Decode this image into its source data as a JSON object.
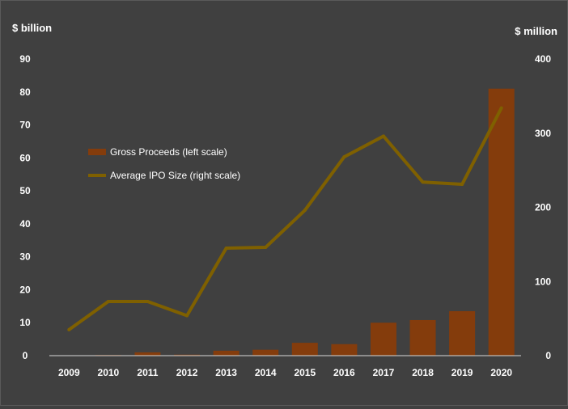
{
  "chart_data": {
    "type": "bar+line",
    "categories": [
      "2009",
      "2010",
      "2011",
      "2012",
      "2013",
      "2014",
      "2015",
      "2016",
      "2017",
      "2018",
      "2019",
      "2020"
    ],
    "left_axis": {
      "unit_label": "$ billion",
      "ylim": [
        0,
        90
      ],
      "ticks": [
        "0",
        "10",
        "20",
        "30",
        "40",
        "50",
        "60",
        "70",
        "80",
        "90"
      ]
    },
    "right_axis": {
      "unit_label": "$ million",
      "ylim": [
        0,
        400
      ],
      "ticks": [
        "0",
        "100",
        "200",
        "300",
        "400"
      ]
    },
    "series": [
      {
        "name": "Gross Proceeds (left scale)",
        "kind": "bar",
        "axis": "left",
        "color": "#843C0C",
        "values": [
          0.1,
          0.2,
          1.0,
          0.3,
          1.5,
          1.8,
          3.9,
          3.5,
          10.0,
          10.8,
          13.5,
          81.0
        ]
      },
      {
        "name": "Average IPO Size (right scale)",
        "kind": "line",
        "axis": "right",
        "color": "#7F6000",
        "values": [
          35,
          73,
          73,
          54,
          145,
          146,
          196,
          268,
          296,
          234,
          231,
          334
        ]
      }
    ],
    "legend_position": "center-left",
    "grid": false
  }
}
